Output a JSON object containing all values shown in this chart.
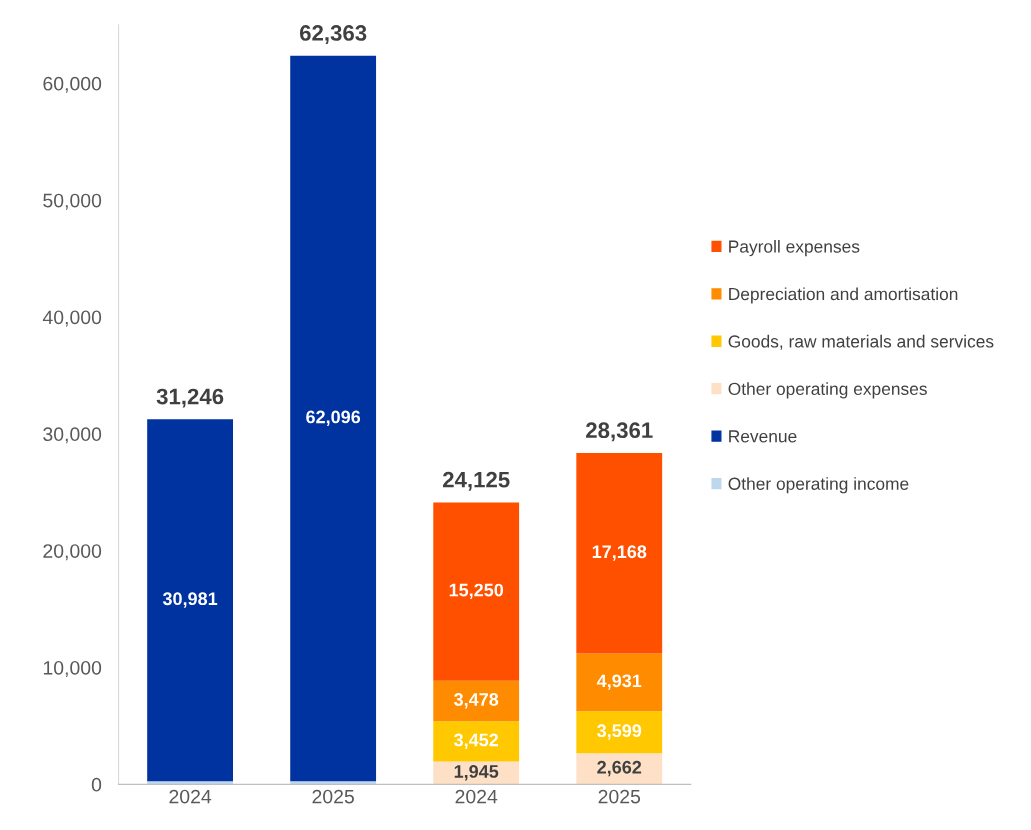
{
  "chart_data": {
    "type": "bar",
    "stacked": true,
    "categories": [
      "2024",
      "2025",
      "2024",
      "2025"
    ],
    "series": [
      {
        "name": "Other operating income",
        "color": "#bdd7ee",
        "values": [
          265,
          267,
          null,
          null
        ],
        "value_labels": [
          null,
          null,
          null,
          null
        ]
      },
      {
        "name": "Revenue",
        "color": "#0033a0",
        "values": [
          30981,
          62096,
          null,
          null
        ],
        "value_labels": [
          "30,981",
          "62,096",
          null,
          null
        ]
      },
      {
        "name": "Other operating expenses",
        "color": "#fde0c5",
        "values": [
          null,
          null,
          1945,
          2662
        ],
        "value_labels": [
          null,
          null,
          "1,945",
          "2,662"
        ]
      },
      {
        "name": "Goods, raw materials and services",
        "color": "#ffc800",
        "values": [
          null,
          null,
          3452,
          3599
        ],
        "value_labels": [
          null,
          null,
          "3,452",
          "3,599"
        ]
      },
      {
        "name": "Depreciation and amortisation",
        "color": "#ff8c00",
        "values": [
          null,
          null,
          3478,
          4931
        ],
        "value_labels": [
          null,
          null,
          "3,478",
          "4,931"
        ]
      },
      {
        "name": "Payroll expenses",
        "color": "#ff5000",
        "values": [
          null,
          null,
          15250,
          17168
        ],
        "value_labels": [
          null,
          null,
          "15,250",
          "17,168"
        ]
      }
    ],
    "totals": [
      "31,246",
      "62,363",
      "24,125",
      "28,361"
    ],
    "ylim": [
      0,
      65000
    ],
    "yticks": [
      {
        "value": 0,
        "label": "0"
      },
      {
        "value": 10000,
        "label": "10,000"
      },
      {
        "value": 20000,
        "label": "20,000"
      },
      {
        "value": 30000,
        "label": "30,000"
      },
      {
        "value": 40000,
        "label": "40,000"
      },
      {
        "value": 50000,
        "label": "50,000"
      },
      {
        "value": 60000,
        "label": "60,000"
      }
    ],
    "grid": false,
    "legend": "right"
  }
}
